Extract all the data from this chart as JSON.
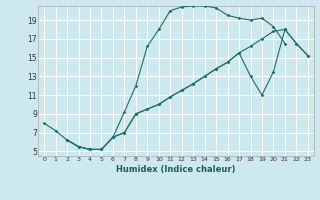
{
  "xlabel": "Humidex (Indice chaleur)",
  "background_color": "#cde8ef",
  "grid_color": "#ffffff",
  "line_color": "#1e6e65",
  "xlim": [
    -0.5,
    23.5
  ],
  "ylim": [
    4.5,
    20.5
  ],
  "xticks": [
    0,
    1,
    2,
    3,
    4,
    5,
    6,
    7,
    8,
    9,
    10,
    11,
    12,
    13,
    14,
    15,
    16,
    17,
    18,
    19,
    20,
    21,
    22,
    23
  ],
  "yticks": [
    5,
    7,
    9,
    11,
    13,
    15,
    17,
    19
  ],
  "line1_x": [
    0,
    1,
    2,
    3,
    4,
    5,
    6,
    7,
    8,
    9,
    10,
    11,
    12,
    13,
    14,
    15,
    16,
    17,
    18,
    19,
    20,
    21
  ],
  "line1_y": [
    8.0,
    7.2,
    6.2,
    5.5,
    5.2,
    5.2,
    6.5,
    9.2,
    12.0,
    16.2,
    18.0,
    20.0,
    20.4,
    20.5,
    20.5,
    20.3,
    19.5,
    19.2,
    19.0,
    19.2,
    18.3,
    16.5
  ],
  "line2_x": [
    2,
    3,
    4,
    5,
    6,
    7,
    8,
    9,
    10,
    11,
    12,
    13,
    14,
    15,
    16,
    17,
    18,
    19,
    20,
    21,
    22,
    23
  ],
  "line2_y": [
    6.2,
    5.5,
    5.2,
    5.2,
    6.5,
    7.0,
    9.0,
    9.5,
    10.0,
    10.8,
    11.5,
    12.2,
    13.0,
    13.8,
    14.5,
    15.5,
    16.2,
    17.0,
    17.8,
    18.0,
    16.5,
    15.2
  ],
  "line3_x": [
    2,
    3,
    4,
    5,
    6,
    7,
    8,
    9,
    10,
    11,
    12,
    13,
    14,
    15,
    16,
    17,
    18,
    19,
    20,
    21,
    22,
    23
  ],
  "line3_y": [
    6.2,
    5.5,
    5.2,
    5.2,
    6.5,
    7.0,
    9.0,
    9.5,
    10.0,
    10.8,
    11.5,
    12.2,
    13.0,
    13.8,
    14.5,
    15.5,
    13.0,
    11.0,
    13.5,
    18.0,
    16.5,
    15.2
  ]
}
